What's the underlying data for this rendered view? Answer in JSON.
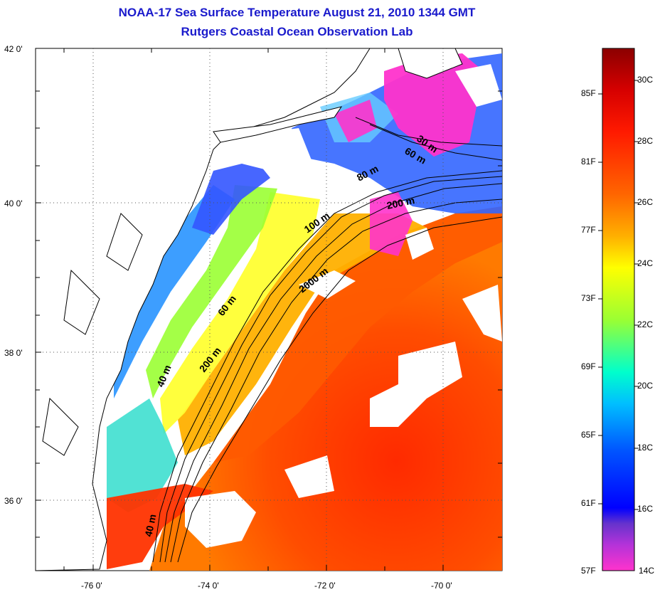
{
  "title": {
    "line1": "NOAA-17 Sea Surface Temperature August 21, 2010 1344 GMT",
    "line2": "Rutgers Coastal Ocean Observation Lab"
  },
  "latitude_labels": [
    "42 0'",
    "40 0'",
    "38 0'",
    "36 0'"
  ],
  "longitude_labels": [
    "-76 0'",
    "-74 0'",
    "-72 0'",
    "-70 0'"
  ],
  "isobath_labels": [
    "30 m",
    "60 m",
    "80 m",
    "200 m",
    "100 m",
    "2000 m",
    "60 m",
    "200 m",
    "40 m",
    "40 m"
  ],
  "colorbar": {
    "fahrenheit": [
      "85F",
      "81F",
      "77F",
      "73F",
      "69F",
      "65F",
      "61F",
      "57F"
    ],
    "celsius": [
      "30C",
      "28C",
      "26C",
      "24C",
      "22C",
      "20C",
      "18C",
      "16C",
      "14C"
    ],
    "colors": [
      "#8b0000",
      "#ff1a00",
      "#ff6600",
      "#ffb000",
      "#ffff00",
      "#9aff33",
      "#00ffcc",
      "#00bfff",
      "#0055ff",
      "#0000ff",
      "#8a2be2",
      "#ff33cc"
    ]
  },
  "colors": {
    "title": "#1a1acc",
    "land_fill": "#ffffff",
    "cold_water": "#ff33cc",
    "warm_water": "#ff3300"
  }
}
